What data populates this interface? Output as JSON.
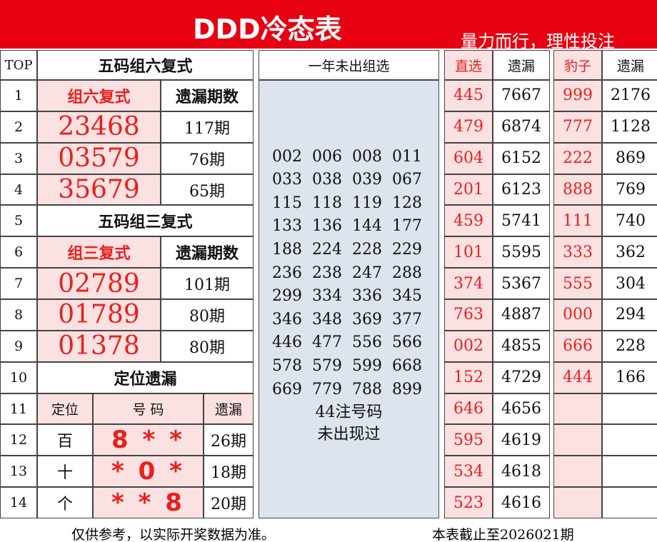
{
  "header": {
    "title": "DDD冷态表",
    "slogan": "量力而行，理性投注"
  },
  "top": {
    "label": "TOP",
    "rows": [
      "1",
      "2",
      "3",
      "4",
      "5",
      "6",
      "7",
      "8",
      "9",
      "10",
      "11",
      "12",
      "13",
      "14"
    ]
  },
  "group_six": {
    "title": "五码组六复式",
    "col_headers": [
      "组六复式",
      "遗漏期数"
    ],
    "rows": [
      [
        "23468",
        "117期"
      ],
      [
        "03579",
        "76期"
      ],
      [
        "35679",
        "65期"
      ]
    ]
  },
  "group_three": {
    "title": "五码组三复式",
    "col_headers": [
      "组三复式",
      "遗漏期数"
    ],
    "rows": [
      [
        "02789",
        "101期"
      ],
      [
        "01789",
        "80期"
      ],
      [
        "01378",
        "80期"
      ]
    ]
  },
  "position": {
    "title": "定位遗漏",
    "col_headers": [
      "定位",
      "号 码",
      "遗漏"
    ],
    "rows": [
      [
        "百",
        "8 * *",
        "26期"
      ],
      [
        "十",
        "* 0 *",
        "18期"
      ],
      [
        "个",
        "* * 8",
        "20期"
      ]
    ]
  },
  "unseen": {
    "title": "一年未出组选",
    "numbers": [
      "002",
      "006",
      "008",
      "011",
      "033",
      "038",
      "039",
      "067",
      "115",
      "118",
      "119",
      "128",
      "133",
      "136",
      "144",
      "177",
      "188",
      "224",
      "228",
      "229",
      "236",
      "238",
      "247",
      "288",
      "299",
      "334",
      "336",
      "345",
      "346",
      "348",
      "369",
      "377",
      "446",
      "477",
      "556",
      "566",
      "578",
      "579",
      "599",
      "668",
      "669",
      "779",
      "788",
      "899"
    ],
    "note": [
      "44注号码",
      "未出现过"
    ]
  },
  "straight": {
    "col_headers": [
      "直选",
      "遗漏"
    ],
    "rows": [
      [
        "445",
        "7667"
      ],
      [
        "479",
        "6874"
      ],
      [
        "604",
        "6152"
      ],
      [
        "201",
        "6123"
      ],
      [
        "459",
        "5741"
      ],
      [
        "101",
        "5595"
      ],
      [
        "374",
        "5367"
      ],
      [
        "763",
        "4887"
      ],
      [
        "002",
        "4855"
      ],
      [
        "152",
        "4729"
      ],
      [
        "646",
        "4656"
      ],
      [
        "595",
        "4619"
      ],
      [
        "534",
        "4618"
      ],
      [
        "523",
        "4616"
      ]
    ]
  },
  "leopard": {
    "col_headers": [
      "豹子",
      "遗漏"
    ],
    "rows": [
      [
        "999",
        "2176"
      ],
      [
        "777",
        "1128"
      ],
      [
        "222",
        "869"
      ],
      [
        "888",
        "769"
      ],
      [
        "111",
        "740"
      ],
      [
        "333",
        "362"
      ],
      [
        "555",
        "304"
      ],
      [
        "000",
        "294"
      ],
      [
        "666",
        "228"
      ],
      [
        "444",
        "166"
      ]
    ]
  },
  "footer": {
    "note": "仅供参考，以实际开奖数据为准。",
    "cutoff": "本表截止至2026021期"
  }
}
